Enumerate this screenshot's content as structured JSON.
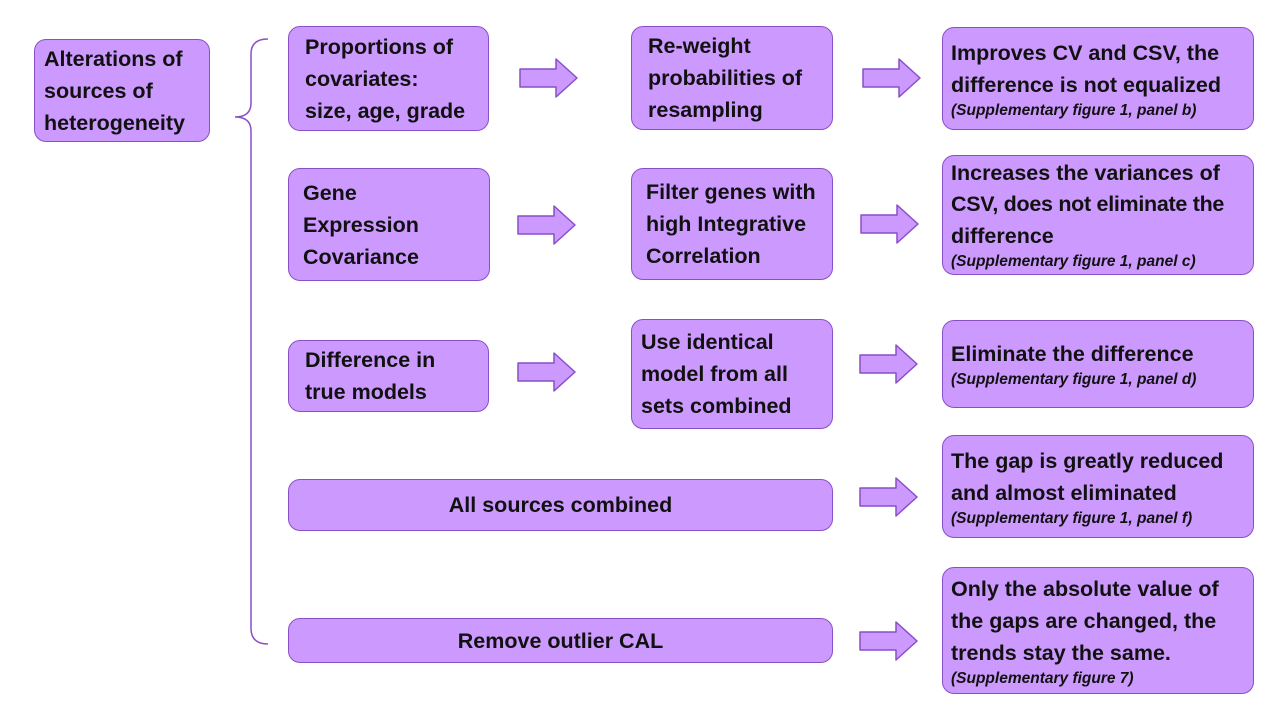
{
  "root": {
    "lines": [
      "Alterations of",
      "sources of",
      "heterogeneity"
    ]
  },
  "rows": [
    {
      "source": [
        "Proportions of",
        "covariates:",
        "size, age, grade"
      ],
      "method": [
        "Re-weight",
        "probabilities of",
        "resampling"
      ],
      "result": [
        "Improves CV and CSV, the",
        "difference is not equalized"
      ],
      "ref": "(Supplementary figure 1, panel b)"
    },
    {
      "source": [
        "Gene",
        "Expression",
        "Covariance"
      ],
      "method": [
        "Filter genes with",
        "high Integrative",
        "Correlation"
      ],
      "result": [
        "Increases the variances of",
        "CSV, does not eliminate the",
        "difference"
      ],
      "ref": "(Supplementary figure 1, panel c)"
    },
    {
      "source": [
        "Difference in",
        "true models"
      ],
      "method": [
        "Use identical",
        "model from all",
        "sets combined"
      ],
      "result": [
        "Eliminate the difference"
      ],
      "ref": "(Supplementary figure 1, panel d)"
    },
    {
      "source": [
        "All sources combined"
      ],
      "result": [
        "The gap is greatly reduced",
        "and almost eliminated"
      ],
      "ref": "(Supplementary figure 1, panel f)"
    },
    {
      "source": [
        "Remove outlier CAL"
      ],
      "result": [
        "Only the absolute value of",
        "the gaps are changed, the",
        "trends stay the same."
      ],
      "ref": "(Supplementary figure 7)"
    }
  ],
  "colors": {
    "box_fill": "#cc99ff",
    "box_border": "#8a4fc7",
    "bracket": "#8a4fc7",
    "text": "#111111"
  }
}
